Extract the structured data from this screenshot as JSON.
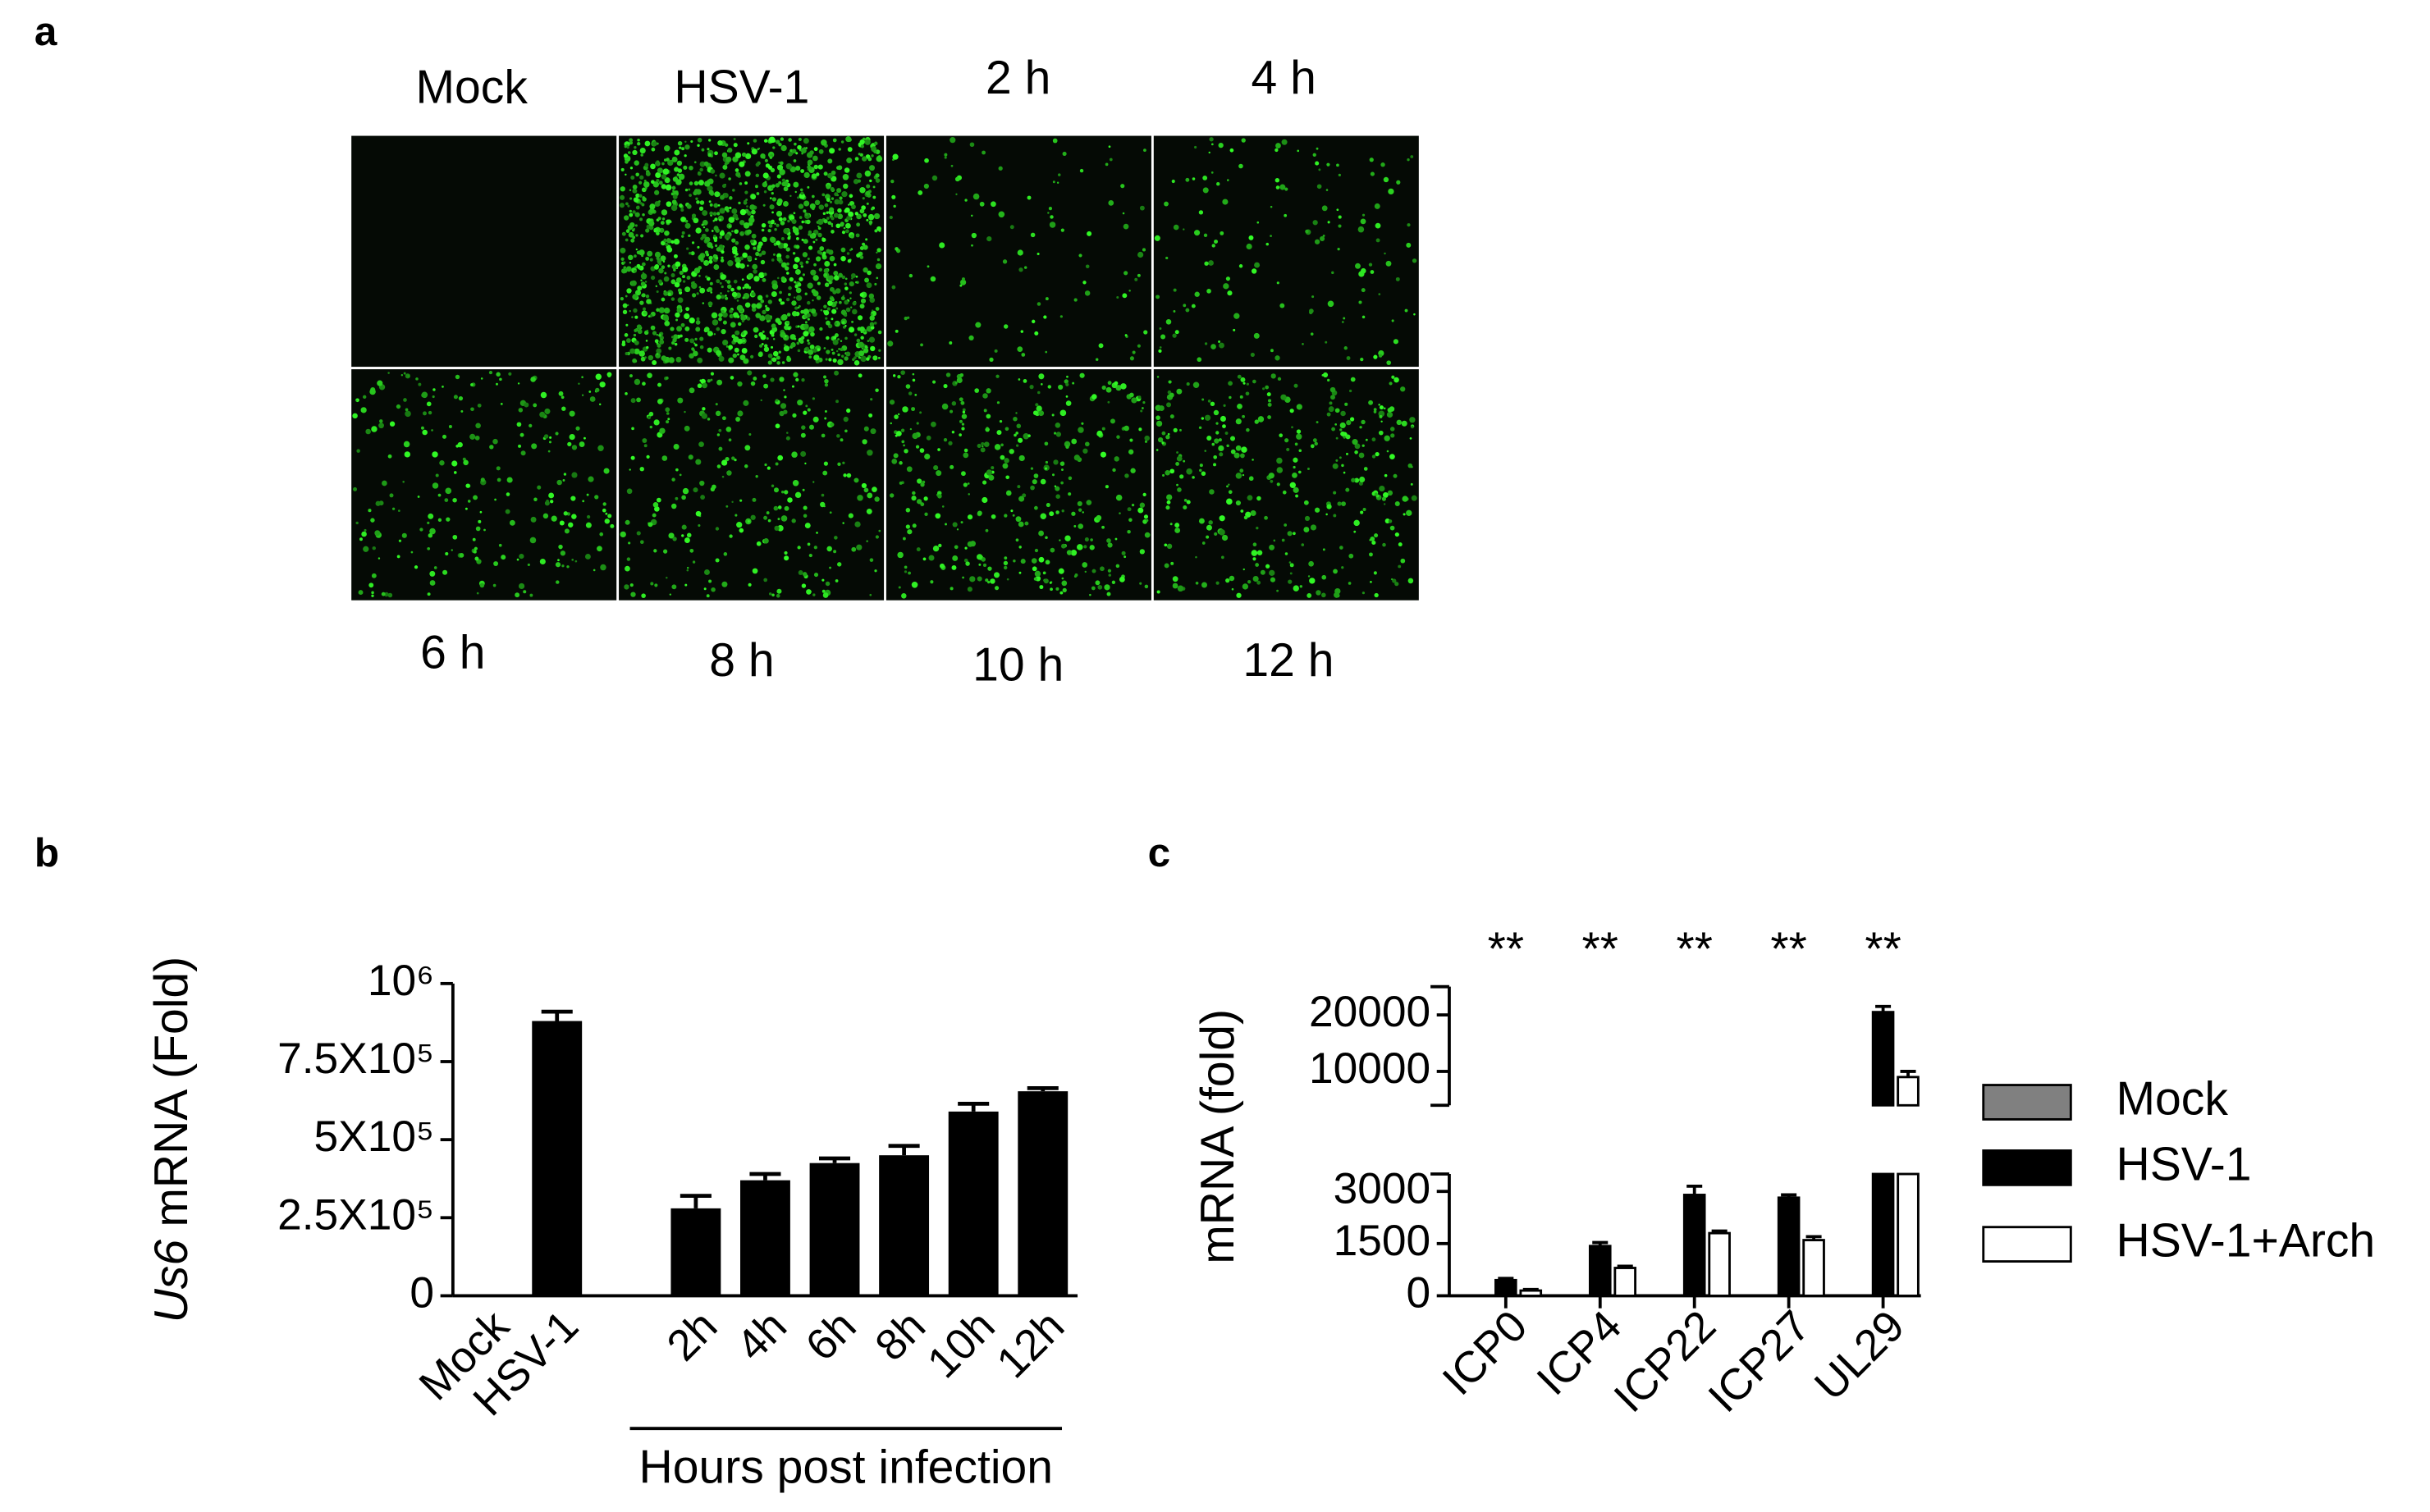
{
  "panel_labels": [
    "a",
    "b",
    "c"
  ],
  "images": {
    "top_labels": [
      "Mock",
      "HSV-1",
      "2 h",
      "4 h"
    ],
    "bottom_labels": [
      "6 h",
      "8 h",
      "10 h",
      "12 h"
    ]
  },
  "chart_data": [
    {
      "type": "bar",
      "ylabel_italic": "Us6",
      "ylabel": "mRNA (Fold)",
      "categories": [
        "Mock",
        "HSV-1",
        null,
        "2h",
        "4h",
        "6h",
        "8h",
        "10h",
        "12h"
      ],
      "values": [
        0,
        880000,
        null,
        280000,
        370000,
        425000,
        450000,
        590000,
        655000
      ],
      "errors": [
        0,
        30000,
        null,
        40000,
        20000,
        15000,
        30000,
        25000,
        10000
      ],
      "color": "#000000",
      "group_label": "Hours post infection",
      "ylim": [
        0,
        1000000
      ],
      "yticks": [
        0,
        {
          "value": 250000,
          "label": "2.5X10⁵"
        },
        {
          "value": 500000,
          "label": "5X10⁵"
        },
        {
          "value": 750000,
          "label": "7.5X10⁵"
        },
        {
          "value": 1000000,
          "label": "10⁶"
        }
      ]
    },
    {
      "type": "grouped-bar-broken",
      "ylabel": "mRNA (fold)",
      "categories": [
        "ICP0",
        "ICP4",
        "ICP22",
        "ICP27",
        "UL29"
      ],
      "series": [
        {
          "name": "Mock",
          "color": "#808080",
          "values": [
            1,
            1,
            1,
            1,
            1
          ],
          "errors": [
            0,
            0,
            0,
            0,
            0
          ]
        },
        {
          "name": "HSV-1",
          "color": "#000000",
          "values": [
            450,
            1430,
            2900,
            2820,
            20500
          ],
          "errors": [
            50,
            100,
            250,
            80,
            1000
          ]
        },
        {
          "name": "HSV-1+Arch",
          "color": "#ffffff",
          "values": [
            150,
            800,
            1800,
            1600,
            9000
          ],
          "errors": [
            30,
            50,
            60,
            100,
            1000
          ]
        }
      ],
      "annotations": [
        "**",
        "**",
        "**",
        "**",
        "**"
      ],
      "y_segments": [
        {
          "ylim": [
            0,
            3500
          ],
          "yticks": [
            0,
            1500,
            3000
          ]
        },
        {
          "ylim": [
            4000,
            25000
          ],
          "yticks": [
            10000,
            20000
          ]
        }
      ]
    }
  ]
}
